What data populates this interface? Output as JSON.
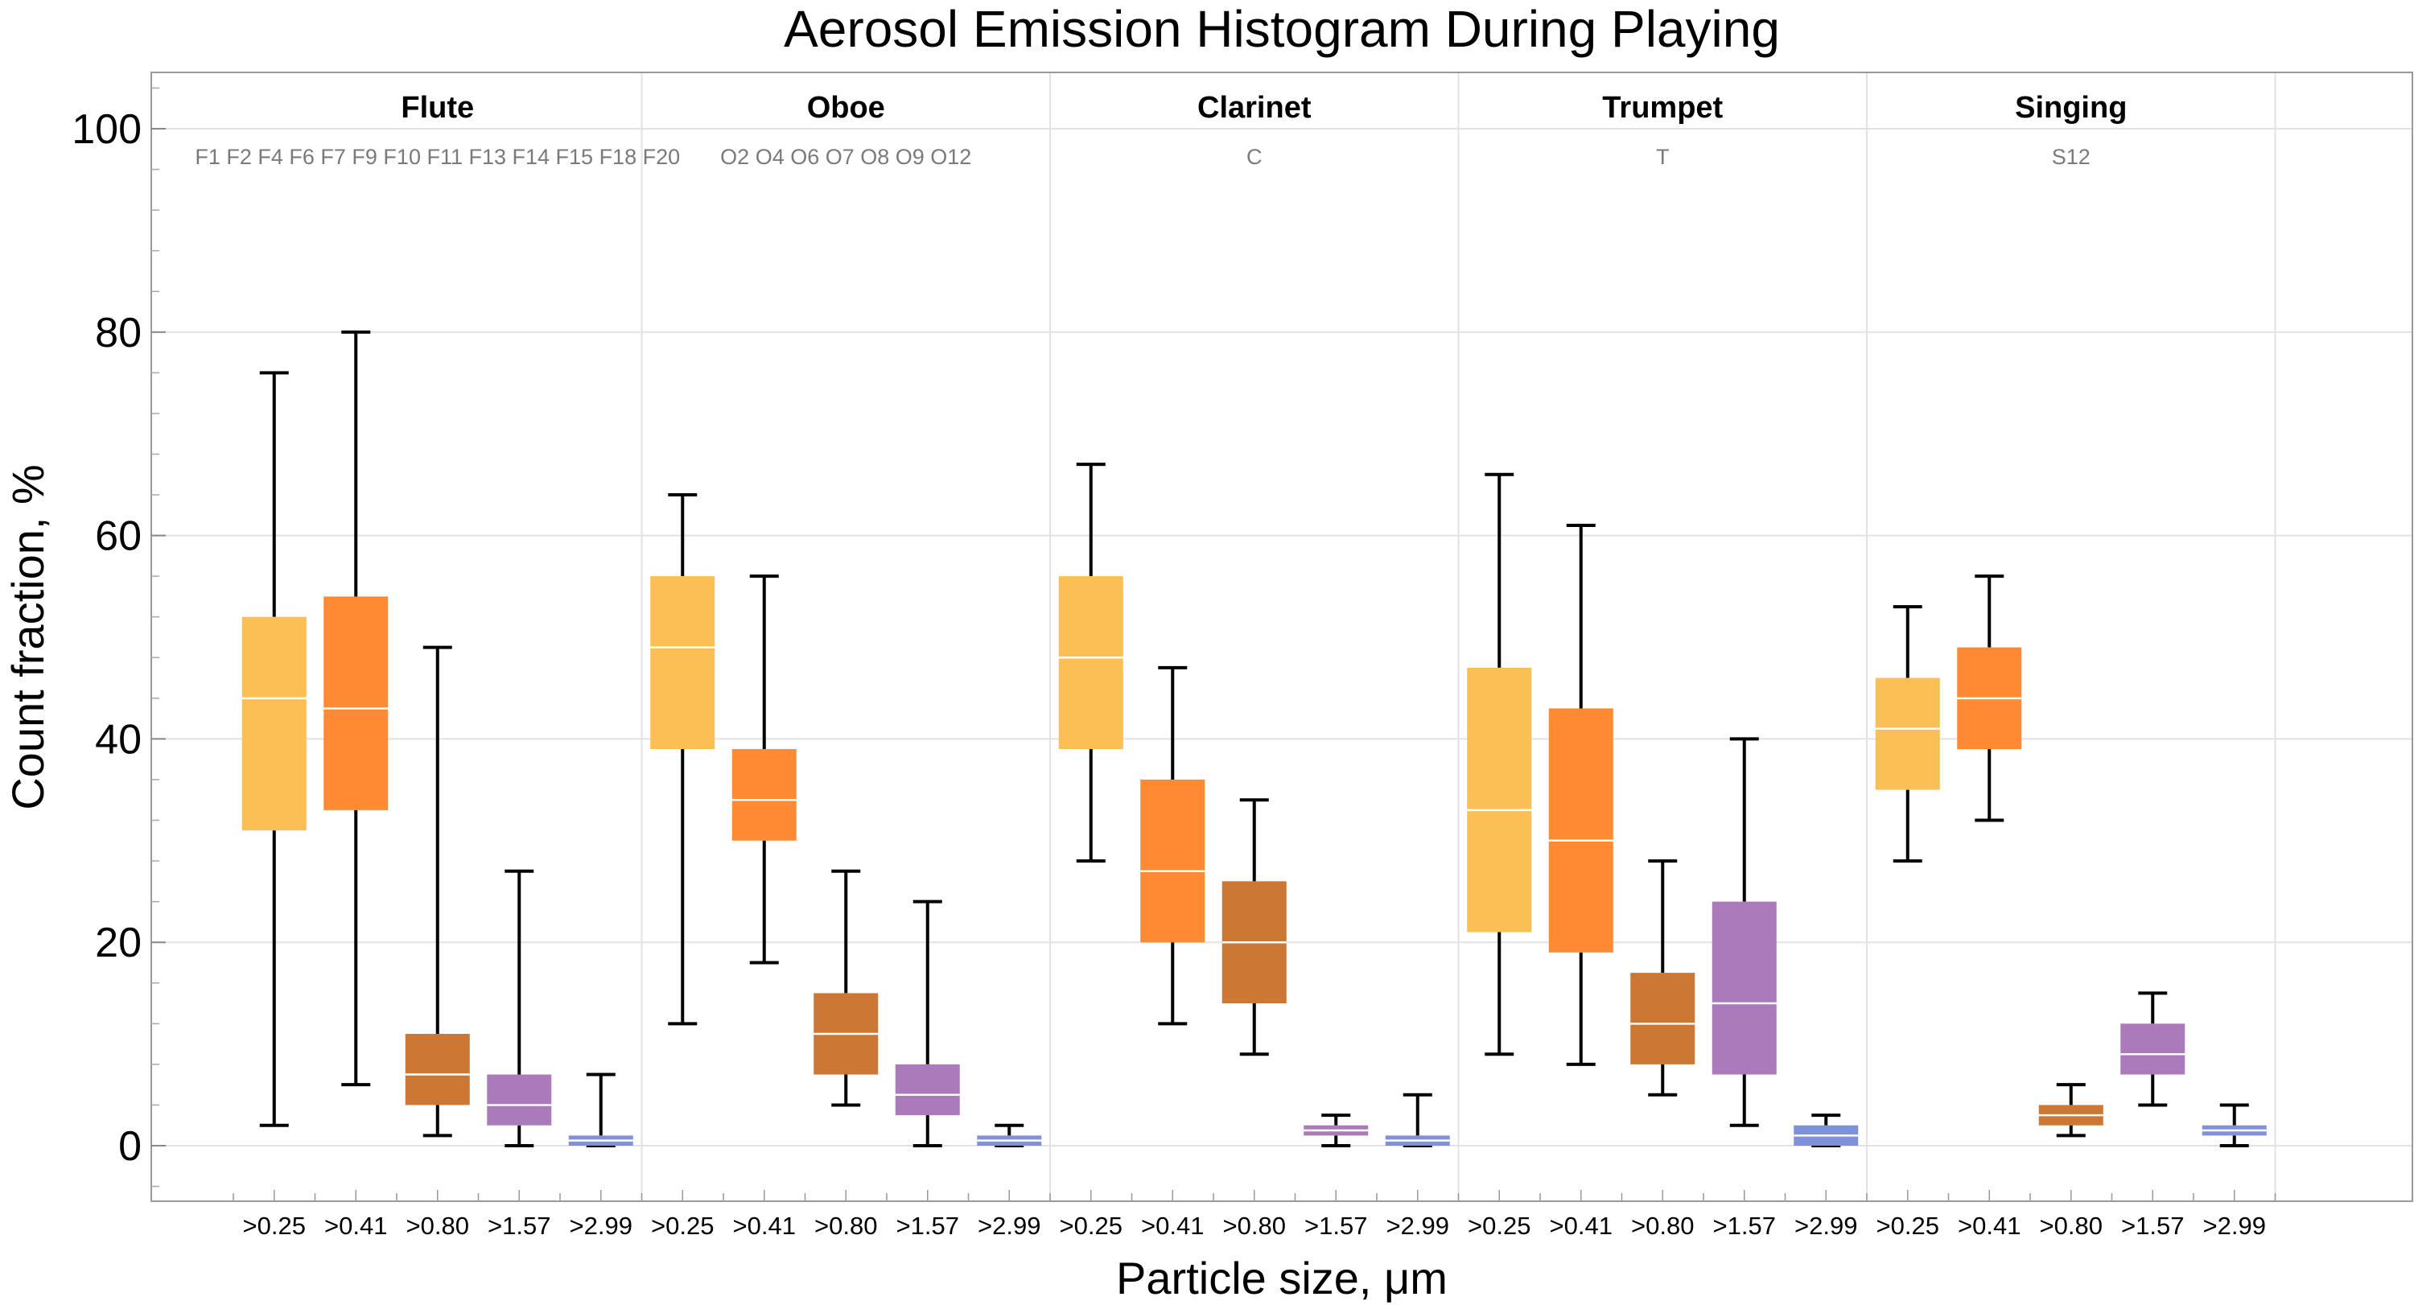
{
  "chart_data": {
    "type": "boxplot",
    "title": "Aerosol Emission Histogram During Playing",
    "xlabel": "Particle size,  μm",
    "ylabel": "Count  fraction,  %",
    "ylim": [
      -5.5,
      105.5
    ],
    "yticks": [
      0,
      20,
      40,
      60,
      80,
      100
    ],
    "grid": true,
    "size_bins": [
      ">0.25",
      ">0.41",
      ">0.80",
      ">1.57",
      ">2.99"
    ],
    "bin_colors": [
      "#FBBF55",
      "#FF8A33",
      "#CC7733",
      "#AA7ABA",
      "#7F92D9"
    ],
    "groups": [
      {
        "name": "Flute",
        "subjects": "F1 F2 F4 F6 F7 F9 F10 F11 F13 F14 F15 F18 F20",
        "boxes": [
          {
            "bin": ">0.25",
            "min": 2,
            "q1": 31,
            "median": 44,
            "q3": 52,
            "max": 76
          },
          {
            "bin": ">0.41",
            "min": 6,
            "q1": 33,
            "median": 43,
            "q3": 54,
            "max": 80
          },
          {
            "bin": ">0.80",
            "min": 1,
            "q1": 4,
            "median": 7,
            "q3": 11,
            "max": 49
          },
          {
            "bin": ">1.57",
            "min": 0,
            "q1": 2,
            "median": 4,
            "q3": 7,
            "max": 27
          },
          {
            "bin": ">2.99",
            "min": 0,
            "q1": 0,
            "median": 0.5,
            "q3": 1,
            "max": 7
          }
        ]
      },
      {
        "name": "Oboe",
        "subjects": "O2 O4 O6 O7 O8 O9 O12",
        "boxes": [
          {
            "bin": ">0.25",
            "min": 12,
            "q1": 39,
            "median": 49,
            "q3": 56,
            "max": 64
          },
          {
            "bin": ">0.41",
            "min": 18,
            "q1": 30,
            "median": 34,
            "q3": 39,
            "max": 56
          },
          {
            "bin": ">0.80",
            "min": 4,
            "q1": 7,
            "median": 11,
            "q3": 15,
            "max": 27
          },
          {
            "bin": ">1.57",
            "min": 0,
            "q1": 3,
            "median": 5,
            "q3": 8,
            "max": 24
          },
          {
            "bin": ">2.99",
            "min": 0,
            "q1": 0,
            "median": 0.5,
            "q3": 1,
            "max": 2
          }
        ]
      },
      {
        "name": "Clarinet",
        "subjects": "C",
        "boxes": [
          {
            "bin": ">0.25",
            "min": 28,
            "q1": 39,
            "median": 48,
            "q3": 56,
            "max": 67
          },
          {
            "bin": ">0.41",
            "min": 12,
            "q1": 20,
            "median": 27,
            "q3": 36,
            "max": 47
          },
          {
            "bin": ">0.80",
            "min": 9,
            "q1": 14,
            "median": 20,
            "q3": 26,
            "max": 34
          },
          {
            "bin": ">1.57",
            "min": 0,
            "q1": 1,
            "median": 1.5,
            "q3": 2,
            "max": 3
          },
          {
            "bin": ">2.99",
            "min": 0,
            "q1": 0,
            "median": 0.5,
            "q3": 1,
            "max": 5
          }
        ]
      },
      {
        "name": "Trumpet",
        "subjects": "T",
        "boxes": [
          {
            "bin": ">0.25",
            "min": 9,
            "q1": 21,
            "median": 33,
            "q3": 47,
            "max": 66
          },
          {
            "bin": ">0.41",
            "min": 8,
            "q1": 19,
            "median": 30,
            "q3": 43,
            "max": 61
          },
          {
            "bin": ">0.80",
            "min": 5,
            "q1": 8,
            "median": 12,
            "q3": 17,
            "max": 28
          },
          {
            "bin": ">1.57",
            "min": 2,
            "q1": 7,
            "median": 14,
            "q3": 24,
            "max": 40
          },
          {
            "bin": ">2.99",
            "min": 0,
            "q1": 0,
            "median": 1,
            "q3": 2,
            "max": 3
          }
        ]
      },
      {
        "name": "Singing",
        "subjects": "S12",
        "boxes": [
          {
            "bin": ">0.25",
            "min": 28,
            "q1": 35,
            "median": 41,
            "q3": 46,
            "max": 53
          },
          {
            "bin": ">0.41",
            "min": 32,
            "q1": 39,
            "median": 44,
            "q3": 49,
            "max": 56
          },
          {
            "bin": ">0.80",
            "min": 1,
            "q1": 2,
            "median": 3,
            "q3": 4,
            "max": 6
          },
          {
            "bin": ">1.57",
            "min": 4,
            "q1": 7,
            "median": 9,
            "q3": 12,
            "max": 15
          },
          {
            "bin": ">2.99",
            "min": 0,
            "q1": 1,
            "median": 1.5,
            "q3": 2,
            "max": 4
          }
        ]
      }
    ]
  }
}
